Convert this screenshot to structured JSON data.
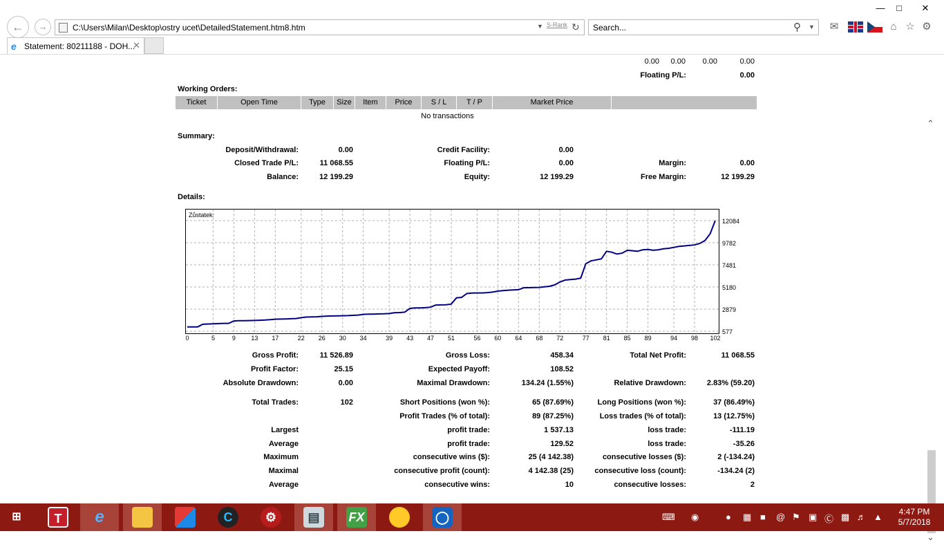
{
  "browser": {
    "address": "C:\\Users\\Milan\\Desktop\\ostry ucet\\DetailedStatement.htm8.htm",
    "srank": "S-Rank",
    "search_placeholder": "Search...",
    "tab_title": "Statement: 80211188 - DOH...",
    "icons": [
      "back-icon",
      "forward-icon",
      "refresh-icon",
      "search-icon",
      "mail-icon",
      "home-icon",
      "favorites-star-icon",
      "settings-gear-icon",
      "close-icon"
    ]
  },
  "top_rows": {
    "values": [
      "0.00",
      "0.00",
      "0.00",
      "0.00"
    ],
    "floating_label": "Floating P/L:",
    "floating_value": "0.00"
  },
  "working_orders": {
    "title": "Working Orders:",
    "headers": [
      "Ticket",
      "Open Time",
      "Type",
      "Size",
      "Item",
      "Price",
      "S / L",
      "T / P",
      "Market Price"
    ],
    "empty_text": "No transactions"
  },
  "summary": {
    "title": "Summary:",
    "deposit_label": "Deposit/Withdrawal:",
    "deposit_value": "0.00",
    "credit_label": "Credit Facility:",
    "credit_value": "0.00",
    "closed_label": "Closed Trade P/L:",
    "closed_value": "11 068.55",
    "floating_label": "Floating P/L:",
    "floating_value": "0.00",
    "margin_label": "Margin:",
    "margin_value": "0.00",
    "balance_label": "Balance:",
    "balance_value": "12 199.29",
    "equity_label": "Equity:",
    "equity_value": "12 199.29",
    "free_margin_label": "Free Margin:",
    "free_margin_value": "12 199.29"
  },
  "details": {
    "title": "Details:",
    "gross_profit_label": "Gross Profit:",
    "gross_profit_value": "11 526.89",
    "gross_loss_label": "Gross Loss:",
    "gross_loss_value": "458.34",
    "total_net_label": "Total Net Profit:",
    "total_net_value": "11 068.55",
    "profit_factor_label": "Profit Factor:",
    "profit_factor_value": "25.15",
    "expected_payoff_label": "Expected Payoff:",
    "expected_payoff_value": "108.52",
    "abs_dd_label": "Absolute Drawdown:",
    "abs_dd_value": "0.00",
    "max_dd_label": "Maximal Drawdown:",
    "max_dd_value": "134.24 (1.55%)",
    "rel_dd_label": "Relative Drawdown:",
    "rel_dd_value": "2.83% (59.20)",
    "total_trades_label": "Total Trades:",
    "total_trades_value": "102",
    "short_label": "Short Positions (won %):",
    "short_value": "65 (87.69%)",
    "long_label": "Long Positions (won %):",
    "long_value": "37 (86.49%)",
    "profit_trades_label": "Profit Trades (% of total):",
    "profit_trades_value": "89 (87.25%)",
    "loss_trades_label": "Loss trades (% of total):",
    "loss_trades_value": "13 (12.75%)",
    "rows": [
      {
        "left": "Largest",
        "mid_label": "profit trade:",
        "mid_value": "1 537.13",
        "right_label": "loss trade:",
        "right_value": "-111.19"
      },
      {
        "left": "Average",
        "mid_label": "profit trade:",
        "mid_value": "129.52",
        "right_label": "loss trade:",
        "right_value": "-35.26"
      },
      {
        "left": "Maximum",
        "mid_label": "consecutive wins ($):",
        "mid_value": "25 (4 142.38)",
        "right_label": "consecutive losses ($):",
        "right_value": "2 (-134.24)"
      },
      {
        "left": "Maximal",
        "mid_label": "consecutive profit (count):",
        "mid_value": "4 142.38 (25)",
        "right_label": "consecutive loss (count):",
        "right_value": "-134.24 (2)"
      },
      {
        "left": "Average",
        "mid_label": "consecutive wins:",
        "mid_value": "10",
        "right_label": "consecutive losses:",
        "right_value": "2"
      }
    ]
  },
  "chart_data": {
    "type": "line",
    "title": "Zůstatek:",
    "line_color": "#000080",
    "grid": true,
    "xlim": [
      0,
      102
    ],
    "ylim": [
      577,
      12084
    ],
    "x_ticks": [
      "0",
      "5",
      "9",
      "13",
      "17",
      "22",
      "26",
      "30",
      "34",
      "39",
      "43",
      "47",
      "51",
      "56",
      "60",
      "64",
      "68",
      "72",
      "77",
      "81",
      "85",
      "89",
      "94",
      "98",
      "102"
    ],
    "y_ticks": [
      "12084",
      "9782",
      "7481",
      "5180",
      "2879",
      "577"
    ],
    "series": [
      {
        "x": [
          0,
          2,
          3,
          5,
          7,
          8,
          9,
          10,
          11,
          13,
          14,
          15,
          16,
          17,
          18,
          19,
          20,
          21,
          22,
          23,
          24,
          25,
          26,
          27,
          28,
          29,
          30,
          31,
          33,
          34,
          35,
          36,
          37,
          38,
          39,
          40,
          41,
          42,
          43,
          44,
          45,
          46,
          47,
          48,
          49,
          50,
          51,
          52,
          53,
          54,
          55,
          56,
          57,
          58,
          59,
          60,
          61,
          62,
          63,
          64,
          65,
          66,
          67,
          68,
          69,
          70,
          71,
          72,
          73,
          74,
          75,
          76,
          77,
          78,
          79,
          80,
          81,
          82,
          83,
          84,
          85,
          86,
          87,
          88,
          89,
          90,
          91,
          92,
          93,
          94,
          95,
          96,
          97,
          98,
          99,
          100,
          101,
          102
        ],
        "y": [
          1031,
          1031,
          1300,
          1350,
          1400,
          1400,
          1650,
          1670,
          1680,
          1700,
          1720,
          1740,
          1780,
          1830,
          1840,
          1860,
          1880,
          1900,
          1990,
          2050,
          2070,
          2080,
          2120,
          2150,
          2170,
          2180,
          2190,
          2200,
          2260,
          2330,
          2350,
          2360,
          2380,
          2390,
          2420,
          2500,
          2520,
          2560,
          2950,
          3000,
          3010,
          3030,
          3080,
          3300,
          3320,
          3330,
          3400,
          4050,
          4100,
          4500,
          4550,
          4560,
          4560,
          4600,
          4650,
          4750,
          4800,
          4850,
          4880,
          4900,
          5100,
          5110,
          5130,
          5140,
          5200,
          5250,
          5400,
          5700,
          5900,
          5950,
          6000,
          6100,
          7600,
          7900,
          8000,
          8100,
          8900,
          8800,
          8600,
          8700,
          9000,
          8950,
          8900,
          9050,
          9080,
          9000,
          9050,
          9150,
          9200,
          9300,
          9400,
          9450,
          9500,
          9550,
          9700,
          10000,
          10700,
          12084
        ]
      }
    ]
  },
  "taskbar": {
    "apps": [
      "start",
      "t-app",
      "internet-explorer",
      "file-explorer",
      "cube-app",
      "browser-c",
      "red-gear-app",
      "monitor-app",
      "fx-app",
      "paint-app",
      "steering-app"
    ],
    "time": "4:47 PM",
    "date": "5/7/2018"
  }
}
